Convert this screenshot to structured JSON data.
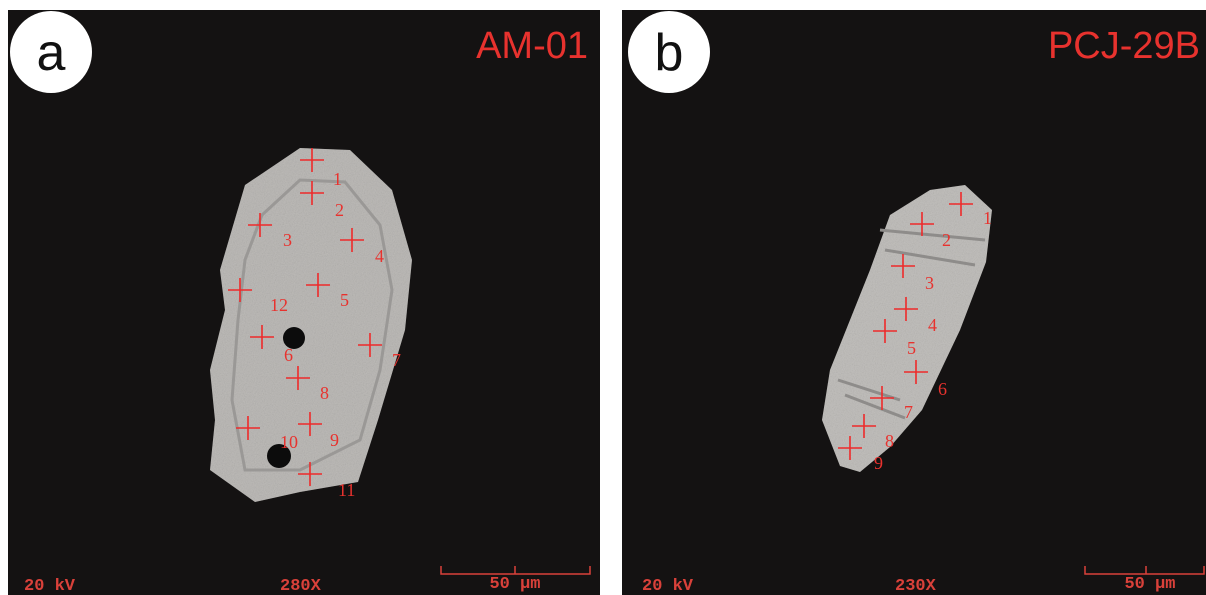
{
  "panels": [
    {
      "letter": "a",
      "sample": "AM-01",
      "voltage": "20 kV",
      "magnification": "280X",
      "scale": "50 µm",
      "spots": [
        "1",
        "2",
        "3",
        "4",
        "5",
        "6",
        "7",
        "8",
        "9",
        "10",
        "11",
        "12"
      ]
    },
    {
      "letter": "b",
      "sample": "PCJ-29B",
      "voltage": "20 kV",
      "magnification": "230X",
      "scale": "50 µm",
      "spots": [
        "1",
        "2",
        "3",
        "4",
        "5",
        "6",
        "7",
        "8",
        "9"
      ]
    }
  ]
}
